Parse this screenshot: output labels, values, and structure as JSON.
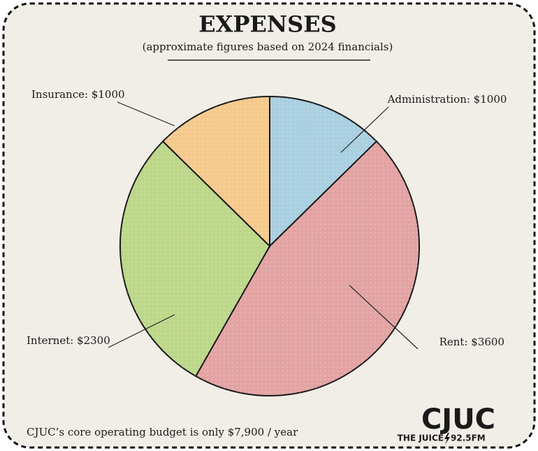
{
  "chart_data": {
    "type": "pie",
    "title": "EXPENSES",
    "subtitle": "(approximate figures based on 2024 financials)",
    "categories": [
      "Administration: $1000",
      "Rent: $3600",
      "Internet: $2300",
      "Insurance: $1000"
    ],
    "values": [
      1000,
      3600,
      2300,
      1000
    ],
    "colors": [
      "#a9cfe0",
      "#e3a3a3",
      "#bdd78a",
      "#f5c98c"
    ],
    "footnote": "CJUC’s core operating budget is only $7,900 / year",
    "logo": {
      "name": "CJUC",
      "tagline": "THE JUICE",
      "frequency": "92.5FM"
    }
  }
}
